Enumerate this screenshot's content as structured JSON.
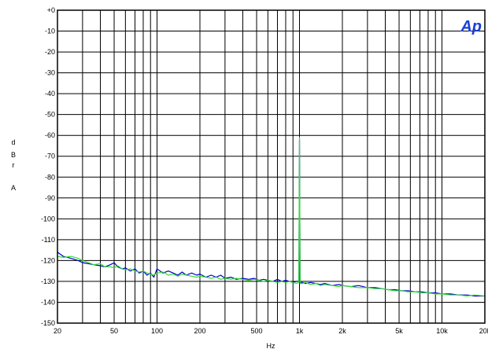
{
  "chart_data": {
    "type": "line",
    "title": "",
    "xlabel": "Hz",
    "ylabel_letters": [
      "d",
      "B",
      "r",
      "",
      "A"
    ],
    "x_scale": "log",
    "xlim": [
      20,
      20000
    ],
    "ylim": [
      -150,
      0
    ],
    "grid": true,
    "legend": "none",
    "logo_text": "Ap",
    "logo_color": "#1a3fd6",
    "x_ticks": [
      {
        "value": 20,
        "label": "20"
      },
      {
        "value": 50,
        "label": "50"
      },
      {
        "value": 100,
        "label": "100"
      },
      {
        "value": 200,
        "label": "200"
      },
      {
        "value": 500,
        "label": "500"
      },
      {
        "value": 1000,
        "label": "1k"
      },
      {
        "value": 2000,
        "label": "2k"
      },
      {
        "value": 5000,
        "label": "5k"
      },
      {
        "value": 10000,
        "label": "10k"
      },
      {
        "value": 20000,
        "label": "20k"
      }
    ],
    "y_ticks": [
      {
        "value": 0,
        "label": "+0"
      },
      {
        "value": -10,
        "label": "-10"
      },
      {
        "value": -20,
        "label": "-20"
      },
      {
        "value": -30,
        "label": "-30"
      },
      {
        "value": -40,
        "label": "-40"
      },
      {
        "value": -50,
        "label": "-50"
      },
      {
        "value": -60,
        "label": "-60"
      },
      {
        "value": -70,
        "label": "-70"
      },
      {
        "value": -80,
        "label": "-80"
      },
      {
        "value": -90,
        "label": "-90"
      },
      {
        "value": -100,
        "label": "-100"
      },
      {
        "value": -110,
        "label": "-110"
      },
      {
        "value": -120,
        "label": "-120"
      },
      {
        "value": -130,
        "label": "-130"
      },
      {
        "value": -140,
        "label": "-140"
      },
      {
        "value": -150,
        "label": "-150"
      }
    ],
    "series": [
      {
        "color": "#0000cc",
        "points": [
          [
            20,
            -116
          ],
          [
            22,
            -118
          ],
          [
            25,
            -119
          ],
          [
            28,
            -120
          ],
          [
            30,
            -121
          ],
          [
            33,
            -121.5
          ],
          [
            36,
            -122
          ],
          [
            40,
            -122.5
          ],
          [
            43,
            -123
          ],
          [
            47,
            -122
          ],
          [
            50,
            -121
          ],
          [
            53,
            -123
          ],
          [
            57,
            -124
          ],
          [
            60,
            -123.5
          ],
          [
            65,
            -125
          ],
          [
            70,
            -124
          ],
          [
            75,
            -126
          ],
          [
            80,
            -125
          ],
          [
            85,
            -127
          ],
          [
            90,
            -126
          ],
          [
            95,
            -128
          ],
          [
            100,
            -124
          ],
          [
            110,
            -126
          ],
          [
            120,
            -125
          ],
          [
            130,
            -126
          ],
          [
            140,
            -127
          ],
          [
            150,
            -125.5
          ],
          [
            160,
            -127
          ],
          [
            175,
            -126
          ],
          [
            190,
            -127
          ],
          [
            200,
            -126.5
          ],
          [
            220,
            -128
          ],
          [
            240,
            -127
          ],
          [
            260,
            -128
          ],
          [
            280,
            -127
          ],
          [
            300,
            -128.5
          ],
          [
            330,
            -128
          ],
          [
            360,
            -129
          ],
          [
            400,
            -128.5
          ],
          [
            440,
            -129
          ],
          [
            480,
            -128.5
          ],
          [
            520,
            -129.5
          ],
          [
            560,
            -129
          ],
          [
            600,
            -129.5
          ],
          [
            650,
            -130
          ],
          [
            700,
            -129
          ],
          [
            750,
            -130
          ],
          [
            800,
            -129.5
          ],
          [
            850,
            -130
          ],
          [
            900,
            -130.5
          ],
          [
            950,
            -130
          ],
          [
            990,
            -130
          ],
          [
            1000,
            -62
          ],
          [
            1010,
            -130.5
          ],
          [
            1050,
            -130.5
          ],
          [
            1100,
            -131
          ],
          [
            1200,
            -130.5
          ],
          [
            1300,
            -131
          ],
          [
            1400,
            -131.5
          ],
          [
            1500,
            -131
          ],
          [
            1700,
            -132
          ],
          [
            1900,
            -131.5
          ],
          [
            2000,
            -132
          ],
          [
            2300,
            -132.5
          ],
          [
            2600,
            -132
          ],
          [
            3000,
            -133
          ],
          [
            3400,
            -133
          ],
          [
            3800,
            -133.5
          ],
          [
            4200,
            -134
          ],
          [
            4700,
            -134
          ],
          [
            5200,
            -134.5
          ],
          [
            5800,
            -134.5
          ],
          [
            6500,
            -135
          ],
          [
            7200,
            -135
          ],
          [
            8000,
            -135.5
          ],
          [
            9000,
            -135.5
          ],
          [
            10000,
            -136
          ],
          [
            11500,
            -136
          ],
          [
            13000,
            -136.5
          ],
          [
            15000,
            -136.5
          ],
          [
            17000,
            -137
          ],
          [
            20000,
            -137
          ]
        ]
      },
      {
        "color": "#33dd33",
        "points": [
          [
            20,
            -118
          ],
          [
            22,
            -118.5
          ],
          [
            25,
            -118
          ],
          [
            28,
            -119
          ],
          [
            30,
            -120
          ],
          [
            33,
            -121
          ],
          [
            36,
            -122
          ],
          [
            40,
            -121.5
          ],
          [
            43,
            -123
          ],
          [
            47,
            -123
          ],
          [
            50,
            -123.5
          ],
          [
            53,
            -122.5
          ],
          [
            57,
            -124
          ],
          [
            60,
            -124.5
          ],
          [
            65,
            -124
          ],
          [
            70,
            -125
          ],
          [
            75,
            -125.5
          ],
          [
            80,
            -125
          ],
          [
            85,
            -126
          ],
          [
            90,
            -126.5
          ],
          [
            95,
            -127
          ],
          [
            100,
            -126
          ],
          [
            110,
            -125.5
          ],
          [
            120,
            -127
          ],
          [
            130,
            -126.5
          ],
          [
            140,
            -127.5
          ],
          [
            150,
            -126.5
          ],
          [
            160,
            -127
          ],
          [
            175,
            -127.5
          ],
          [
            190,
            -128
          ],
          [
            200,
            -127.5
          ],
          [
            220,
            -128
          ],
          [
            240,
            -128.5
          ],
          [
            260,
            -128
          ],
          [
            280,
            -129
          ],
          [
            300,
            -128.5
          ],
          [
            330,
            -129
          ],
          [
            360,
            -128.5
          ],
          [
            400,
            -129
          ],
          [
            440,
            -129.5
          ],
          [
            480,
            -129
          ],
          [
            520,
            -129.5
          ],
          [
            560,
            -130
          ],
          [
            600,
            -129.5
          ],
          [
            650,
            -130
          ],
          [
            700,
            -130.5
          ],
          [
            750,
            -130
          ],
          [
            800,
            -130.5
          ],
          [
            850,
            -130
          ],
          [
            900,
            -130.5
          ],
          [
            950,
            -131
          ],
          [
            990,
            -130.5
          ],
          [
            1000,
            -61
          ],
          [
            1010,
            -131
          ],
          [
            1050,
            -131
          ],
          [
            1100,
            -130.5
          ],
          [
            1200,
            -131.5
          ],
          [
            1300,
            -131
          ],
          [
            1400,
            -132
          ],
          [
            1500,
            -131.5
          ],
          [
            1700,
            -132
          ],
          [
            1900,
            -132.5
          ],
          [
            2000,
            -132
          ],
          [
            2300,
            -132.5
          ],
          [
            2600,
            -133
          ],
          [
            3000,
            -133
          ],
          [
            3400,
            -133.5
          ],
          [
            3800,
            -133.5
          ],
          [
            4200,
            -134
          ],
          [
            4700,
            -134.5
          ],
          [
            5200,
            -134.5
          ],
          [
            5800,
            -135
          ],
          [
            6500,
            -135
          ],
          [
            7200,
            -135.5
          ],
          [
            8000,
            -135.5
          ],
          [
            9000,
            -136
          ],
          [
            10000,
            -136
          ],
          [
            11500,
            -136.5
          ],
          [
            13000,
            -136.5
          ],
          [
            15000,
            -137
          ],
          [
            17000,
            -136.5
          ],
          [
            20000,
            -137
          ]
        ]
      }
    ]
  }
}
